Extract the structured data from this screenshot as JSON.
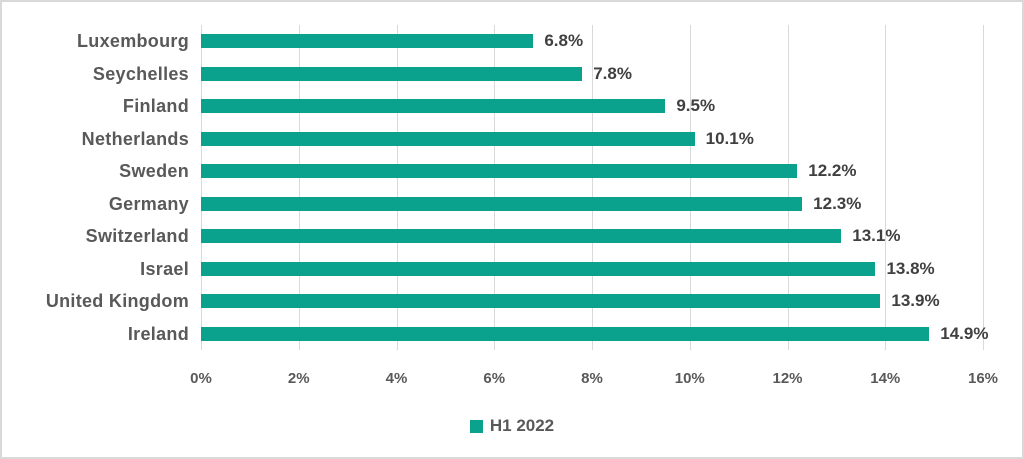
{
  "chart_data": {
    "type": "bar",
    "orientation": "horizontal",
    "title": "",
    "categories": [
      "Luxembourg",
      "Seychelles",
      "Finland",
      "Netherlands",
      "Sweden",
      "Germany",
      "Switzerland",
      "Israel",
      "United Kingdom",
      "Ireland"
    ],
    "values": [
      6.8,
      7.8,
      9.5,
      10.1,
      12.2,
      12.3,
      13.1,
      13.8,
      13.9,
      14.9
    ],
    "value_labels": [
      "6.8%",
      "7.8%",
      "9.5%",
      "10.1%",
      "12.2%",
      "12.3%",
      "13.1%",
      "13.8%",
      "13.9%",
      "14.9%"
    ],
    "series_name": "H1 2022",
    "xlim": [
      0,
      16
    ],
    "x_ticks": [
      "0%",
      "2%",
      "4%",
      "6%",
      "8%",
      "10%",
      "12%",
      "14%",
      "16%"
    ],
    "x_tick_values": [
      0,
      2,
      4,
      6,
      8,
      10,
      12,
      14,
      16
    ],
    "grid": true,
    "legend_position": "bottom-center",
    "colors": {
      "bar": "#0aa28d",
      "gridline": "#d9d9d9",
      "axis_line": "#d9d9d9",
      "border": "#d9d9d9",
      "category_text": "#595959",
      "data_label_text": "#404040",
      "tick_text": "#595959",
      "legend_text": "#595959",
      "background": "#ffffff"
    }
  }
}
